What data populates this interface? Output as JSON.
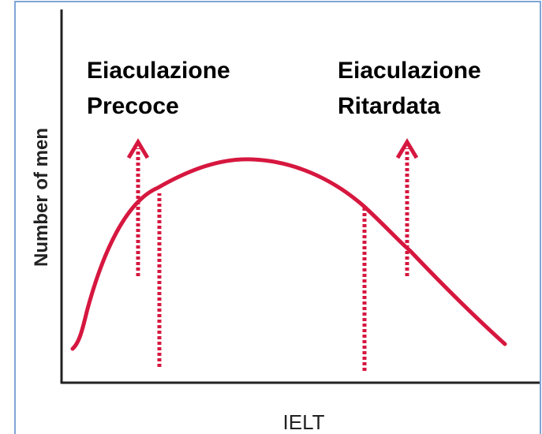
{
  "labels": {
    "left": [
      "Eiaculazione",
      "Precoce"
    ],
    "right": [
      "Eiaculazione",
      "Ritardata"
    ]
  },
  "y_axis_title": "Number of men",
  "x_axis_title": "IELT"
}
